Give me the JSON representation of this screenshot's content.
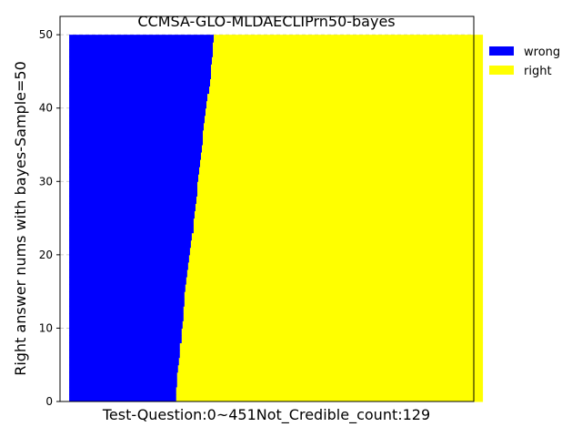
{
  "chart_data": {
    "type": "bar",
    "orientation": "horizontal-stacked",
    "title": "CCMSA-GLO-MLDAECLIPrn50-bayes",
    "xlabel": "Test-Question:0~451Not_Credible_count:129",
    "ylabel": "Right answer nums with bayes-Sample=50",
    "ylim": [
      0,
      52.5
    ],
    "yticks": [
      0,
      10,
      20,
      30,
      40,
      50
    ],
    "xlim": [
      0,
      452
    ],
    "grid": true,
    "legend_position": "top-right",
    "series": [
      {
        "name": "wrong",
        "color": "#0000ff",
        "description": "number of questions with fewer than y right answers at each y level",
        "values_by_y": [
          117,
          117,
          118,
          118,
          119,
          120,
          121,
          121,
          123,
          123,
          124,
          125,
          125,
          126,
          126,
          127,
          128,
          129,
          130,
          131,
          132,
          133,
          134,
          136,
          136,
          137,
          138,
          139,
          140,
          140,
          141,
          142,
          143,
          144,
          145,
          146,
          146,
          147,
          148,
          149,
          150,
          151,
          153,
          154,
          155,
          155,
          156,
          157,
          157,
          158,
          159
        ]
      },
      {
        "name": "right",
        "color": "#ffff00",
        "description": "remaining questions at each y level",
        "values_by_y": [
          335,
          335,
          334,
          334,
          333,
          332,
          331,
          331,
          329,
          329,
          328,
          327,
          327,
          326,
          326,
          325,
          324,
          323,
          322,
          321,
          320,
          319,
          318,
          316,
          316,
          315,
          314,
          313,
          312,
          312,
          311,
          310,
          309,
          308,
          307,
          306,
          306,
          305,
          304,
          303,
          302,
          301,
          299,
          298,
          297,
          297,
          296,
          295,
          295,
          294,
          293
        ]
      }
    ],
    "wrong_boundary_by_y": [
      117,
      117,
      118,
      118,
      119,
      120,
      121,
      121,
      123,
      123,
      124,
      125,
      125,
      126,
      126,
      127,
      128,
      129,
      130,
      131,
      132,
      133,
      134,
      136,
      136,
      137,
      138,
      139,
      140,
      140,
      141,
      142,
      143,
      144,
      145,
      146,
      146,
      147,
      148,
      149,
      150,
      151,
      153,
      154,
      155,
      155,
      156,
      157,
      157,
      158,
      159
    ]
  }
}
